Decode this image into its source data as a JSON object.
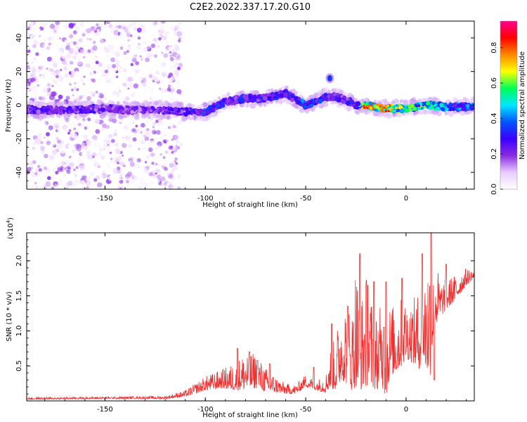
{
  "figure_title": "C2E2.2022.337.17.20.G10",
  "chart_data": [
    {
      "type": "heatmap",
      "title": "",
      "xlabel": "Height of straight line (km)",
      "ylabel": "Frequency (Hz)",
      "xlim": [
        -189,
        34
      ],
      "ylim": [
        -50,
        50
      ],
      "x_ticks": [
        -150,
        -100,
        -50,
        0
      ],
      "y_ticks": [
        -40,
        -20,
        0,
        20,
        40
      ],
      "colorbar": {
        "label": "Normalized spectral amplitude",
        "range": [
          0,
          0.95
        ],
        "ticks": [
          0.0,
          0.2,
          0.4,
          0.6,
          0.8
        ],
        "colormap": [
          "#ffffff",
          "#e9ccff",
          "#8a2be2",
          "#3a00ff",
          "#0055ff",
          "#00e6ff",
          "#00ff55",
          "#ffff00",
          "#ff8800",
          "#ff0000",
          "#ff0090"
        ]
      },
      "ridge": {
        "x": [
          -189,
          -170,
          -150,
          -135,
          -120,
          -110,
          -100,
          -90,
          -80,
          -70,
          -60,
          -50,
          -40,
          -35,
          -30,
          -25,
          -20,
          -10,
          0,
          10,
          20,
          34
        ],
        "y": [
          -3,
          -3,
          -2,
          -3,
          -3,
          -4,
          -4,
          2,
          4,
          4,
          7,
          0,
          5,
          5,
          3,
          0,
          0,
          -2,
          -2,
          0,
          -1,
          -1
        ],
        "amplitude": [
          0.3,
          0.3,
          0.3,
          0.25,
          0.3,
          0.3,
          0.4,
          0.35,
          0.35,
          0.35,
          0.35,
          0.45,
          0.35,
          0.35,
          0.3,
          0.4,
          0.9,
          0.9,
          0.6,
          0.7,
          0.5,
          0.45
        ]
      },
      "noise_region_x": [
        -189,
        -112
      ],
      "spot": {
        "x": -38,
        "y": 16,
        "amplitude": 0.35
      }
    },
    {
      "type": "line",
      "title": "",
      "xlabel": "Height of straight line (km)",
      "ylabel": "SNR (10 * v/v)",
      "y_multiplier": "(x10",
      "y_multiplier_exp": "4",
      "y_multiplier_close": ")",
      "xlim": [
        -189,
        34
      ],
      "ylim": [
        0,
        24000
      ],
      "x_ticks": [
        -150,
        -100,
        -50,
        0
      ],
      "y_ticks": [
        5000,
        10000,
        15000,
        20000
      ],
      "y_tick_labels": [
        "0.5",
        "1.0",
        "1.5",
        "2.0"
      ],
      "color": "#ef3030",
      "envelope": {
        "x": [
          -189,
          -150,
          -120,
          -110,
          -100,
          -92,
          -85,
          -80,
          -75,
          -70,
          -65,
          -60,
          -55,
          -50,
          -45,
          -40,
          -38,
          -35,
          -32,
          -30,
          -27,
          -25,
          -23,
          -20,
          -17,
          -15,
          -12,
          -10,
          -8,
          -5,
          -2,
          0,
          3,
          6,
          9,
          12,
          14,
          17,
          20,
          25,
          30,
          34
        ],
        "base": [
          200,
          300,
          300,
          600,
          1500,
          1800,
          1500,
          1600,
          1800,
          1300,
          1200,
          1000,
          1000,
          2000,
          1500,
          1200,
          1800,
          1500,
          3000,
          2500,
          1500,
          2000,
          1500,
          2000,
          2000,
          1500,
          2000,
          500,
          3500,
          4000,
          5000,
          6000,
          5500,
          4500,
          5000,
          3000,
          10000,
          12000,
          13000,
          14500,
          16500,
          17500
        ],
        "amp": [
          300,
          300,
          400,
          900,
          2000,
          2700,
          4000,
          5500,
          5000,
          3500,
          2300,
          1500,
          1300,
          1800,
          1500,
          2500,
          5500,
          8000,
          11000,
          12000,
          11000,
          19000,
          12000,
          16500,
          12500,
          11000,
          12000,
          11000,
          10500,
          9500,
          10000,
          8500,
          9000,
          11000,
          13000,
          20000,
          12000,
          5000,
          4500,
          3500,
          2500,
          1200
        ]
      },
      "peaks": [
        {
          "x": -84,
          "y": 7500
        },
        {
          "x": -78,
          "y": 7000
        },
        {
          "x": -74,
          "y": 5800
        },
        {
          "x": -68,
          "y": 5300
        },
        {
          "x": -46,
          "y": 4800
        },
        {
          "x": -37,
          "y": 11000
        },
        {
          "x": -29,
          "y": 13500
        },
        {
          "x": -23,
          "y": 21000
        },
        {
          "x": -19,
          "y": 16500
        },
        {
          "x": -16,
          "y": 17000
        },
        {
          "x": -11,
          "y": 10500
        },
        {
          "x": -10,
          "y": 17000
        },
        {
          "x": -2,
          "y": 17500
        },
        {
          "x": 8,
          "y": 21000
        },
        {
          "x": 12.5,
          "y": 24000
        },
        {
          "x": 14,
          "y": 3000
        },
        {
          "x": 20,
          "y": 19500
        }
      ]
    }
  ]
}
